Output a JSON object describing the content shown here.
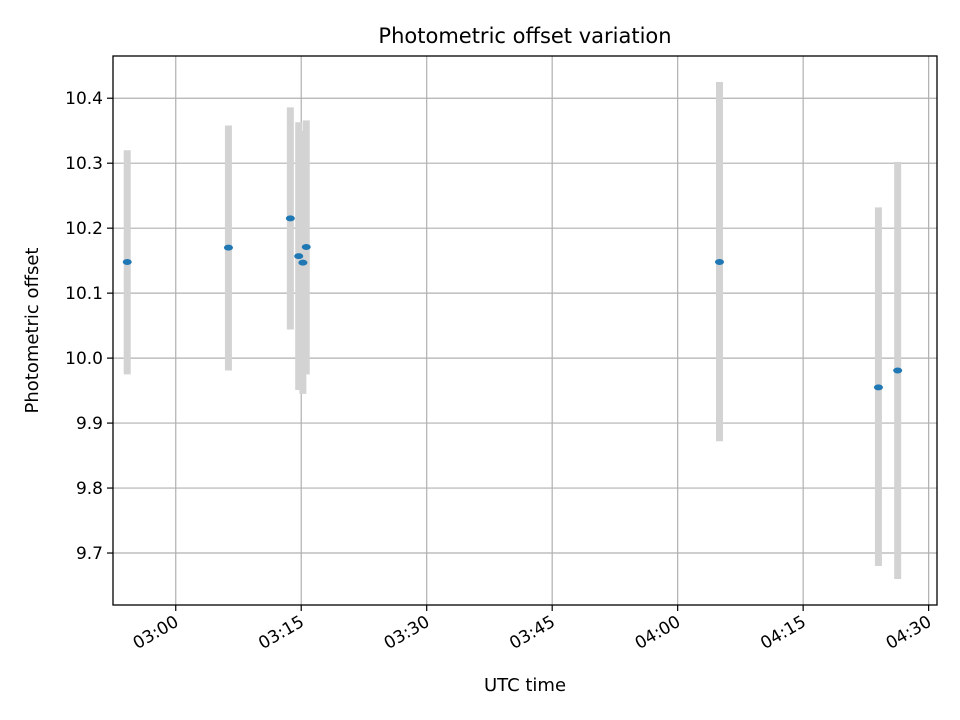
{
  "chart_data": {
    "type": "scatter",
    "title": "Photometric offset variation",
    "xlabel": "UTC time",
    "ylabel": "Photometric offset",
    "x_axis_type": "time",
    "xlim": [
      "02:52:30",
      "04:31:00"
    ],
    "ylim": [
      9.62,
      10.465
    ],
    "grid": true,
    "x_ticks": [
      "03:00",
      "03:15",
      "03:30",
      "03:45",
      "04:00",
      "04:15",
      "04:30"
    ],
    "x_tick_labels": [
      "03:00",
      "03:15",
      "03:30",
      "03:45",
      "04:00",
      "04:15",
      "04:30"
    ],
    "y_ticks": [
      9.7,
      9.8,
      9.9,
      10.0,
      10.1,
      10.2,
      10.3,
      10.4
    ],
    "y_tick_labels": [
      "9.7",
      "9.8",
      "9.9",
      "10.0",
      "10.1",
      "10.2",
      "10.3",
      "10.4"
    ],
    "points": [
      {
        "x": "02:54:12",
        "y": 10.148,
        "ylow": 9.975,
        "yhigh": 10.32
      },
      {
        "x": "03:06:18",
        "y": 10.17,
        "ylow": 9.981,
        "yhigh": 10.358
      },
      {
        "x": "03:13:42",
        "y": 10.215,
        "ylow": 10.044,
        "yhigh": 10.386
      },
      {
        "x": "03:14:42",
        "y": 10.157,
        "ylow": 9.951,
        "yhigh": 10.363
      },
      {
        "x": "03:15:12",
        "y": 10.147,
        "ylow": 9.945,
        "yhigh": 10.35
      },
      {
        "x": "03:15:36",
        "y": 10.171,
        "ylow": 9.975,
        "yhigh": 10.366
      },
      {
        "x": "04:05:00",
        "y": 10.148,
        "ylow": 9.872,
        "yhigh": 10.425
      },
      {
        "x": "04:24:00",
        "y": 9.955,
        "ylow": 9.68,
        "yhigh": 10.232
      },
      {
        "x": "04:26:18",
        "y": 9.981,
        "ylow": 9.66,
        "yhigh": 10.302
      }
    ],
    "colors": {
      "point": "#1f77b4",
      "errorbar": "#d3d3d3",
      "grid": "#b0b0b0",
      "axes": "#000000"
    }
  }
}
